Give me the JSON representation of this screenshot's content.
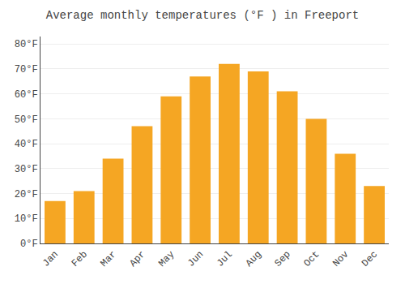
{
  "chart_data": {
    "type": "bar",
    "title": "Average monthly temperatures (°F ) in Freeport",
    "categories": [
      "Jan",
      "Feb",
      "Mar",
      "Apr",
      "May",
      "Jun",
      "Jul",
      "Aug",
      "Sep",
      "Oct",
      "Nov",
      "Dec"
    ],
    "values": [
      17,
      21,
      34,
      47,
      59,
      67,
      72,
      69,
      61,
      50,
      36,
      23
    ],
    "color": "#F5A623",
    "ylim": [
      0,
      83
    ],
    "yticks": [
      {
        "value": 0,
        "label": "0°F"
      },
      {
        "value": 10,
        "label": "10°F"
      },
      {
        "value": 20,
        "label": "20°F"
      },
      {
        "value": 30,
        "label": "30°F"
      },
      {
        "value": 40,
        "label": "40°F"
      },
      {
        "value": 50,
        "label": "50°F"
      },
      {
        "value": 60,
        "label": "60°F"
      },
      {
        "value": 70,
        "label": "70°F"
      },
      {
        "value": 80,
        "label": "80°F"
      }
    ],
    "grid": true
  }
}
